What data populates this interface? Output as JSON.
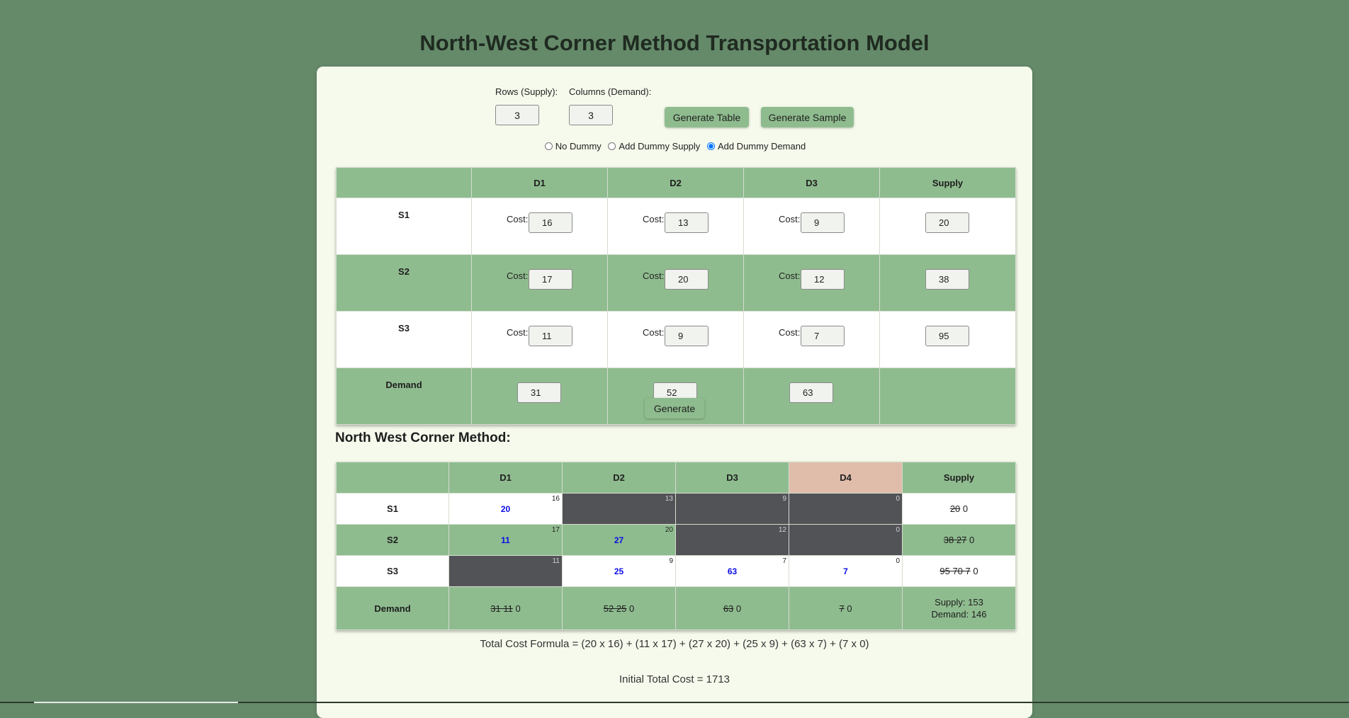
{
  "page_title": "North-West Corner Method Transportation Model",
  "controls": {
    "rows_label": "Rows (Supply):",
    "rows_value": "3",
    "cols_label": "Columns (Demand):",
    "cols_value": "3",
    "generate_table_label": "Generate Table",
    "generate_sample_label": "Generate Sample",
    "radio_no_dummy": "No Dummy",
    "radio_dummy_supply": "Add Dummy Supply",
    "radio_dummy_demand": "Add Dummy Demand",
    "selected_radio": "Add Dummy Demand"
  },
  "input_table": {
    "headers": [
      "",
      "D1",
      "D2",
      "D3",
      "Supply"
    ],
    "cost_label": "Cost:",
    "rows": [
      {
        "label": "S1",
        "costs": [
          "16",
          "13",
          "9"
        ],
        "supply": "20"
      },
      {
        "label": "S2",
        "costs": [
          "17",
          "20",
          "12"
        ],
        "supply": "38"
      },
      {
        "label": "S3",
        "costs": [
          "11",
          "9",
          "7"
        ],
        "supply": "95"
      }
    ],
    "demand_label": "Demand",
    "demand": [
      "31",
      "52",
      "63"
    ]
  },
  "generate_label": "Generate",
  "result": {
    "heading": "North West Corner Method:",
    "headers": [
      "",
      "D1",
      "D2",
      "D3",
      "D4",
      "Supply"
    ],
    "rows": [
      {
        "label": "S1",
        "cells": [
          {
            "cost": "16",
            "alloc": "20"
          },
          {
            "cost": "13",
            "alloc": ""
          },
          {
            "cost": "9",
            "alloc": ""
          },
          {
            "cost": "0",
            "alloc": ""
          }
        ],
        "supply_struck": "20",
        "supply_rest": "0"
      },
      {
        "label": "S2",
        "cells": [
          {
            "cost": "17",
            "alloc": "11"
          },
          {
            "cost": "20",
            "alloc": "27"
          },
          {
            "cost": "12",
            "alloc": ""
          },
          {
            "cost": "0",
            "alloc": ""
          }
        ],
        "supply_struck": "38 27",
        "supply_rest": "0"
      },
      {
        "label": "S3",
        "cells": [
          {
            "cost": "11",
            "alloc": ""
          },
          {
            "cost": "9",
            "alloc": "25"
          },
          {
            "cost": "7",
            "alloc": "63"
          },
          {
            "cost": "0",
            "alloc": "7"
          }
        ],
        "supply_struck": "95 70 7",
        "supply_rest": "0"
      }
    ],
    "demand_label": "Demand",
    "demand": [
      {
        "struck": "31 11",
        "rest": "0"
      },
      {
        "struck": "52 25",
        "rest": "0"
      },
      {
        "struck": "63",
        "rest": "0"
      },
      {
        "struck": "7",
        "rest": "0"
      }
    ],
    "total_supply": "Supply: 153",
    "total_demand": "Demand: 146"
  },
  "formula": "Total Cost Formula = (20 x 16) + (11 x 17) + (27 x 20) + (25 x 9) + (63 x 7) + (7 x 0)",
  "total_cost": "Initial Total Cost = 1713"
}
